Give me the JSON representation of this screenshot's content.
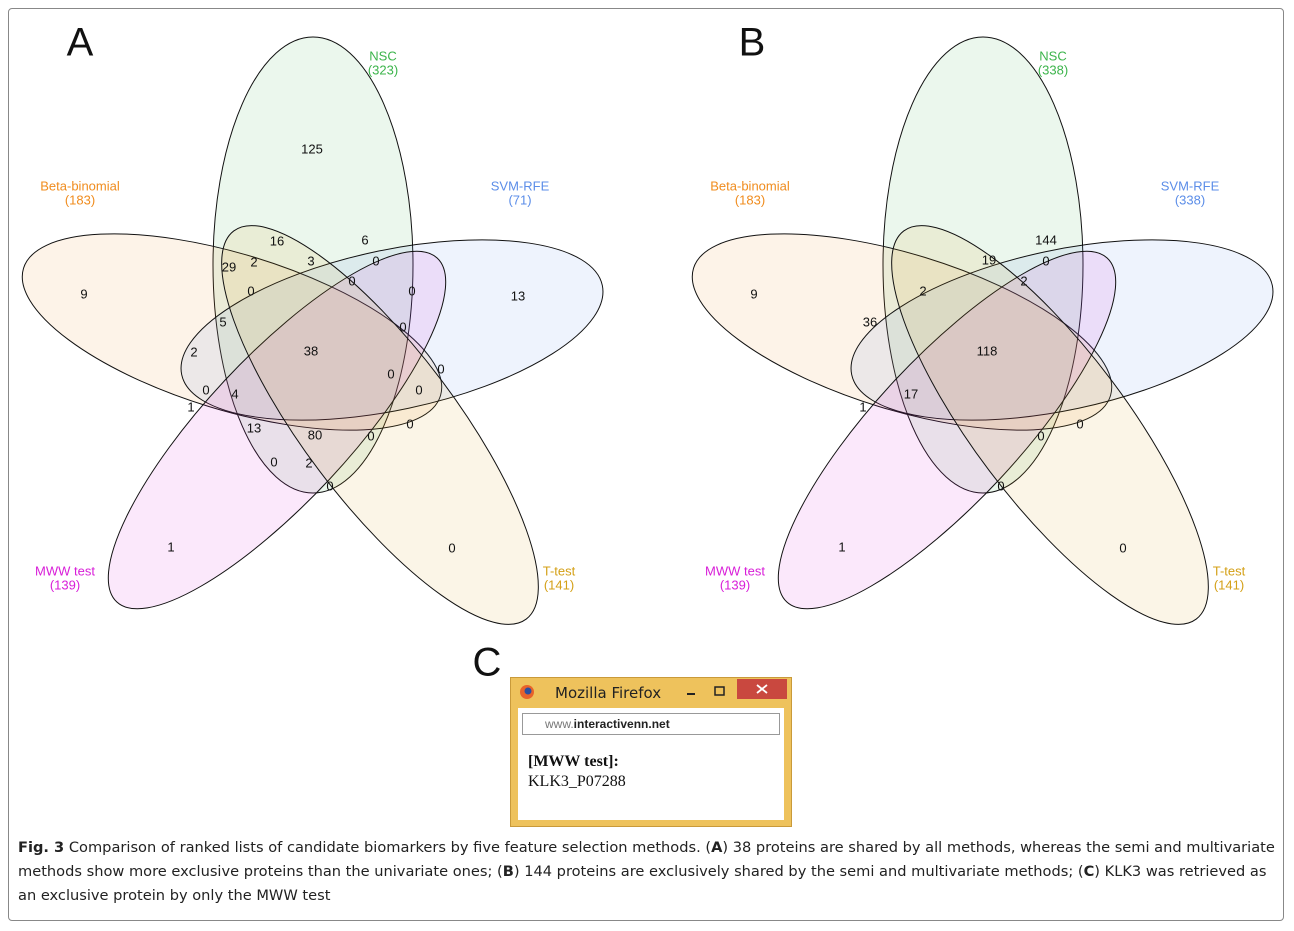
{
  "panels": [
    {
      "letter": "A",
      "sets": [
        {
          "name": "NSC",
          "count": "(323)",
          "color": "#3cb44b"
        },
        {
          "name": "Beta-binomial",
          "count": "(183)",
          "color": "#f08c1e"
        },
        {
          "name": "SVM-RFE",
          "count": "(71)",
          "color": "#5b8de8"
        },
        {
          "name": "MWW test",
          "count": "(139)",
          "color": "#d81ed8"
        },
        {
          "name": "T-test",
          "count": "(141)",
          "color": "#d4a017"
        }
      ],
      "regions": [
        125,
        16,
        6,
        29,
        2,
        3,
        0,
        9,
        0,
        0,
        0,
        13,
        5,
        0,
        2,
        38,
        0,
        0,
        4,
        0,
        0,
        1,
        13,
        80,
        0,
        0,
        0,
        2,
        0,
        1,
        0
      ]
    },
    {
      "letter": "B",
      "sets": [
        {
          "name": "NSC",
          "count": "(338)",
          "color": "#3cb44b"
        },
        {
          "name": "Beta-binomial",
          "count": "(183)",
          "color": "#f08c1e"
        },
        {
          "name": "SVM-RFE",
          "count": "(338)",
          "color": "#5b8de8"
        },
        {
          "name": "MWW test",
          "count": "(139)",
          "color": "#d81ed8"
        },
        {
          "name": "T-test",
          "count": "(141)",
          "color": "#d4a017"
        }
      ],
      "regions": [
        144,
        19,
        0,
        9,
        2,
        2,
        36,
        118,
        17,
        1,
        0,
        0,
        0,
        1,
        0
      ]
    }
  ],
  "browser": {
    "letter": "C",
    "title": "Mozilla Firefox",
    "url_prefix": "www.",
    "url_domain": "interactivenn.net",
    "result_label": "[MWW test]:",
    "result_value": "KLK3_P07288"
  },
  "caption": {
    "label": "Fig. 3",
    "runs": [
      "Comparison of ranked lists of candidate biomarkers by five feature selection methods. (",
      "A",
      ") 38 proteins are shared by all methods, whereas the semi and multivariate methods show more exclusive proteins than the univariate ones; (",
      "B",
      ") 144 proteins are exclusively shared by the semi and multivariate methods; (",
      "C",
      ") KLK3 was retrieved as an exclusive protein by only the MWW test"
    ]
  }
}
